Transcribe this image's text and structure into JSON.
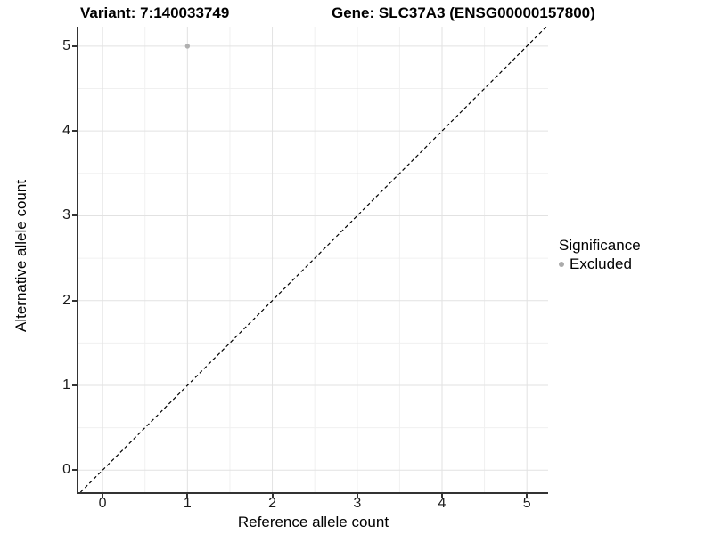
{
  "chart_data": {
    "type": "scatter",
    "titles": {
      "left": "Variant: 7:140033749",
      "right": "Gene: SLC37A3 (ENSG00000157800)"
    },
    "xlabel": "Reference allele count",
    "ylabel": "Alternative allele count",
    "xlim": [
      -0.285,
      5.25
    ],
    "ylim": [
      -0.26,
      5.23
    ],
    "x_ticks": [
      0,
      1,
      2,
      3,
      4,
      5
    ],
    "y_ticks": [
      0,
      1,
      2,
      3,
      4,
      5
    ],
    "x_minor_ticks": [
      0.5,
      1.5,
      2.5,
      3.5,
      4.5
    ],
    "y_minor_ticks": [
      0.5,
      1.5,
      2.5,
      3.5,
      4.5
    ],
    "grid": {
      "visible": true,
      "major_color": "#e2e2e2",
      "minor_color": "#f0f0f0"
    },
    "identity_line": {
      "style": "dashed",
      "color": "#000000",
      "x1": -0.26,
      "y1": -0.26,
      "x2": 5.25,
      "y2": 5.25
    },
    "series": [
      {
        "name": "Excluded",
        "color": "#b0b0b0",
        "points": [
          {
            "x": 1,
            "y": 5
          }
        ]
      }
    ],
    "legend": {
      "title": "Significance",
      "position": "right",
      "items": [
        {
          "label": "Excluded",
          "color": "#ababab"
        }
      ]
    }
  },
  "colors": {
    "axis_line": "#333333",
    "tick_text": "#1a1a1a",
    "title_text": "#000000",
    "background": "#ffffff"
  }
}
